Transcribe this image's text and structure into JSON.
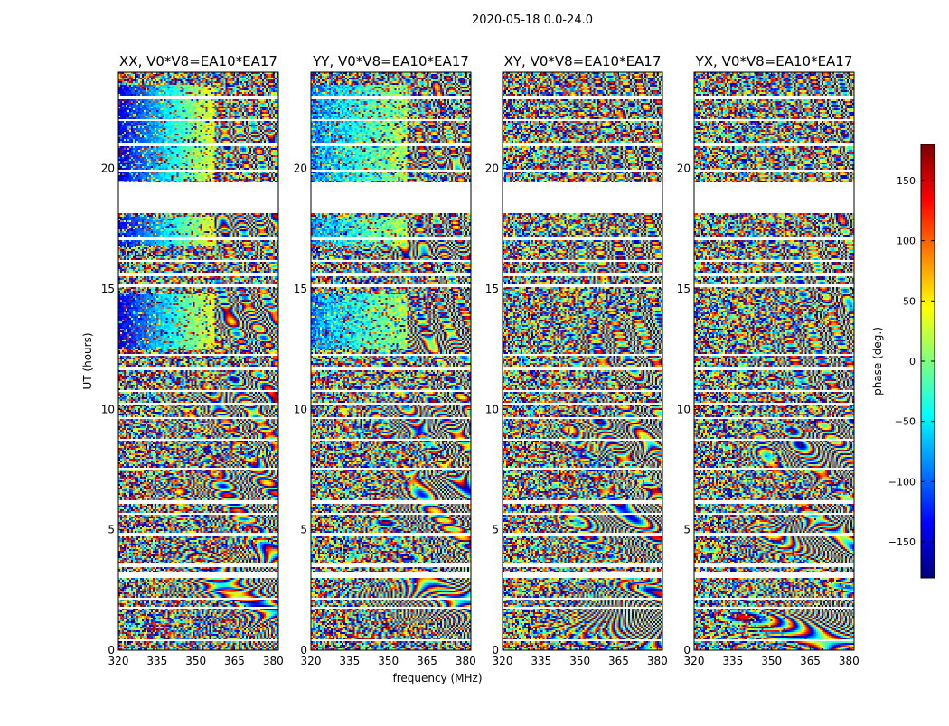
{
  "figure": {
    "suptitle": "2020-05-18 0.0-24.0"
  },
  "chart_data": {
    "type": "heatmap",
    "title": "2020-05-18 0.0-24.0",
    "xlabel": "frequency (MHz)",
    "ylabel": "UT (hours)",
    "xlim": [
      320,
      382
    ],
    "ylim": [
      0,
      24
    ],
    "xticks": [
      320,
      335,
      350,
      365,
      380
    ],
    "yticks": [
      0,
      5,
      10,
      15,
      20
    ],
    "colorbar": {
      "label": "phase (deg.)",
      "cmap": "jet",
      "vmin": -180,
      "vmax": 180,
      "ticks": [
        -150,
        -100,
        -50,
        0,
        50,
        100,
        150
      ],
      "tick_labels": [
        "−150",
        "−100",
        "−50",
        "0",
        "50",
        "100",
        "150"
      ]
    },
    "panels": [
      {
        "title": "XX, V0*V8=EA10*EA17",
        "polarization": "XX",
        "baseline": "V0*V8=EA10*EA17"
      },
      {
        "title": "YY, V0*V8=EA10*EA17",
        "polarization": "YY",
        "baseline": "V0*V8=EA10*EA17"
      },
      {
        "title": "XY, V0*V8=EA10*EA17",
        "polarization": "XY",
        "baseline": "V0*V8=EA10*EA17"
      },
      {
        "title": "YX, V0*V8=EA10*EA17",
        "polarization": "YX",
        "baseline": "V0*V8=EA10*EA17"
      }
    ],
    "flagged_ut_hours": [
      [
        0.35,
        0.45
      ],
      [
        1.7,
        1.8
      ],
      [
        2.1,
        2.2
      ],
      [
        3.0,
        3.2
      ],
      [
        3.45,
        3.6
      ],
      [
        4.7,
        4.85
      ],
      [
        5.6,
        5.7
      ],
      [
        6.1,
        6.25
      ],
      [
        7.5,
        7.6
      ],
      [
        8.7,
        8.8
      ],
      [
        9.6,
        9.7
      ],
      [
        10.2,
        10.3
      ],
      [
        10.7,
        10.8
      ],
      [
        11.6,
        11.75
      ],
      [
        12.2,
        12.3
      ],
      [
        15.05,
        15.2
      ],
      [
        15.55,
        15.65
      ],
      [
        16.1,
        16.2
      ],
      [
        17.05,
        17.15
      ],
      [
        18.15,
        19.45
      ],
      [
        19.85,
        19.95
      ],
      [
        20.95,
        21.05
      ],
      [
        21.95,
        22.05
      ],
      [
        22.9,
        23.0
      ]
    ]
  }
}
